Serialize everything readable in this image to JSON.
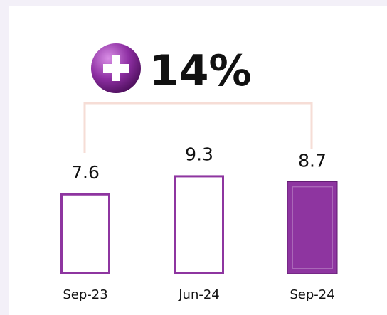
{
  "chart_data": {
    "type": "bar",
    "annotation": "14%",
    "categories": [
      "Sep-23",
      "Jun-24",
      "Sep-24"
    ],
    "values": [
      7.6,
      9.3,
      8.7
    ],
    "color": "#8e35a0",
    "filled": [
      false,
      false,
      true
    ],
    "ylim": [
      0,
      10
    ]
  }
}
